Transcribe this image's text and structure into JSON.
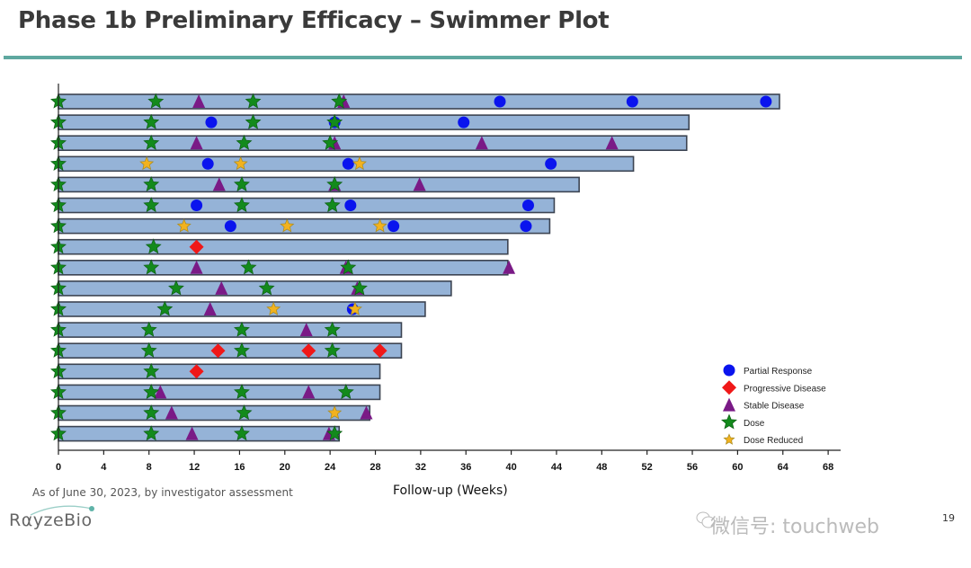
{
  "slide": {
    "title": "Phase 1b Preliminary Efficacy – Swimmer Plot",
    "footnote": "As of June 30, 2023, by investigator assessment",
    "logo": "RαyzeBio",
    "watermark": "微信号: touchweb",
    "page_number": "19",
    "accent_color": "#5fa8a0"
  },
  "chart_data": {
    "type": "swimmer",
    "title": "",
    "xlabel": "Follow-up (Weeks)",
    "ylabel": "",
    "xlim": [
      0,
      69
    ],
    "xticks": [
      0,
      4,
      8,
      12,
      16,
      20,
      24,
      28,
      32,
      36,
      40,
      44,
      48,
      52,
      56,
      60,
      64,
      68
    ],
    "grid": false,
    "legend_position": "bottom-right",
    "bar_color": "#95b3d7",
    "legend": [
      {
        "key": "PR",
        "label": "Partial Response",
        "marker": "circle",
        "color": "#0a14ee"
      },
      {
        "key": "PD",
        "label": "Progressive Disease",
        "marker": "diamond",
        "color": "#f01818"
      },
      {
        "key": "SD",
        "label": "Stable Disease",
        "marker": "triangle",
        "color": "#7a1a86"
      },
      {
        "key": "D",
        "label": "Dose",
        "marker": "star",
        "color": "#138a1c"
      },
      {
        "key": "DR",
        "label": "Dose Reduced",
        "marker": "star",
        "color": "#f2b21e"
      }
    ],
    "patients": [
      {
        "duration": 63.7,
        "events": [
          [
            "D",
            0
          ],
          [
            "D",
            8.6
          ],
          [
            "SD",
            12.4
          ],
          [
            "D",
            17.2
          ],
          [
            "D",
            24.8
          ],
          [
            "SD",
            25.2
          ],
          [
            "PR",
            39.0
          ],
          [
            "PR",
            50.7
          ],
          [
            "PR",
            62.5
          ]
        ]
      },
      {
        "duration": 55.7,
        "events": [
          [
            "D",
            0
          ],
          [
            "D",
            8.2
          ],
          [
            "PR",
            13.5
          ],
          [
            "D",
            17.2
          ],
          [
            "PR",
            24.4
          ],
          [
            "D",
            24.4
          ],
          [
            "PR",
            35.8
          ]
        ]
      },
      {
        "duration": 55.5,
        "events": [
          [
            "D",
            0
          ],
          [
            "D",
            8.2
          ],
          [
            "SD",
            12.2
          ],
          [
            "D",
            16.4
          ],
          [
            "D",
            24.0
          ],
          [
            "SD",
            24.4
          ],
          [
            "SD",
            37.4
          ],
          [
            "SD",
            48.9
          ]
        ]
      },
      {
        "duration": 50.8,
        "events": [
          [
            "D",
            0
          ],
          [
            "DR",
            7.8
          ],
          [
            "PR",
            13.2
          ],
          [
            "DR",
            16.1
          ],
          [
            "PR",
            25.6
          ],
          [
            "DR",
            26.6
          ],
          [
            "PR",
            43.5
          ]
        ]
      },
      {
        "duration": 46.0,
        "events": [
          [
            "D",
            0
          ],
          [
            "D",
            8.2
          ],
          [
            "SD",
            14.2
          ],
          [
            "D",
            16.2
          ],
          [
            "SD",
            24.4
          ],
          [
            "D",
            24.4
          ],
          [
            "SD",
            31.9
          ]
        ]
      },
      {
        "duration": 43.8,
        "events": [
          [
            "D",
            0
          ],
          [
            "D",
            8.2
          ],
          [
            "PR",
            12.2
          ],
          [
            "D",
            16.2
          ],
          [
            "D",
            24.2
          ],
          [
            "PR",
            25.8
          ],
          [
            "PR",
            41.5
          ]
        ]
      },
      {
        "duration": 43.4,
        "events": [
          [
            "D",
            0
          ],
          [
            "DR",
            11.1
          ],
          [
            "PR",
            15.2
          ],
          [
            "DR",
            20.2
          ],
          [
            "DR",
            28.4
          ],
          [
            "PR",
            29.6
          ],
          [
            "PR",
            41.3
          ]
        ]
      },
      {
        "duration": 39.7,
        "events": [
          [
            "D",
            0
          ],
          [
            "D",
            8.4
          ],
          [
            "PD",
            12.2
          ]
        ]
      },
      {
        "duration": 39.7,
        "events": [
          [
            "D",
            0
          ],
          [
            "D",
            8.2
          ],
          [
            "SD",
            12.2
          ],
          [
            "D",
            16.8
          ],
          [
            "SD",
            25.4
          ],
          [
            "D",
            25.6
          ],
          [
            "SD",
            39.8
          ]
        ]
      },
      {
        "duration": 34.7,
        "events": [
          [
            "D",
            0
          ],
          [
            "D",
            10.4
          ],
          [
            "SD",
            14.4
          ],
          [
            "D",
            18.4
          ],
          [
            "SD",
            26.4
          ],
          [
            "D",
            26.6
          ]
        ]
      },
      {
        "duration": 32.4,
        "events": [
          [
            "D",
            0
          ],
          [
            "D",
            9.4
          ],
          [
            "SD",
            13.4
          ],
          [
            "DR",
            19.0
          ],
          [
            "PR",
            26.0
          ],
          [
            "DR",
            26.2
          ]
        ]
      },
      {
        "duration": 30.3,
        "events": [
          [
            "D",
            0
          ],
          [
            "D",
            8.0
          ],
          [
            "D",
            16.2
          ],
          [
            "SD",
            21.9
          ],
          [
            "D",
            24.2
          ]
        ]
      },
      {
        "duration": 30.3,
        "events": [
          [
            "D",
            0
          ],
          [
            "D",
            8.0
          ],
          [
            "PD",
            14.1
          ],
          [
            "D",
            16.2
          ],
          [
            "PD",
            22.1
          ],
          [
            "D",
            24.2
          ],
          [
            "PD",
            28.4
          ]
        ]
      },
      {
        "duration": 28.4,
        "events": [
          [
            "D",
            0
          ],
          [
            "D",
            8.2
          ],
          [
            "PD",
            12.2
          ]
        ]
      },
      {
        "duration": 28.4,
        "events": [
          [
            "D",
            0
          ],
          [
            "D",
            8.2
          ],
          [
            "SD",
            9.0
          ],
          [
            "D",
            16.2
          ],
          [
            "SD",
            22.1
          ],
          [
            "D",
            25.4
          ]
        ]
      },
      {
        "duration": 27.5,
        "events": [
          [
            "D",
            0
          ],
          [
            "D",
            8.2
          ],
          [
            "SD",
            10.0
          ],
          [
            "D",
            16.4
          ],
          [
            "DR",
            24.4
          ],
          [
            "SD",
            27.2
          ]
        ]
      },
      {
        "duration": 24.8,
        "events": [
          [
            "D",
            0
          ],
          [
            "D",
            8.2
          ],
          [
            "SD",
            11.8
          ],
          [
            "D",
            16.2
          ],
          [
            "SD",
            23.9
          ],
          [
            "D",
            24.4
          ]
        ]
      }
    ]
  }
}
